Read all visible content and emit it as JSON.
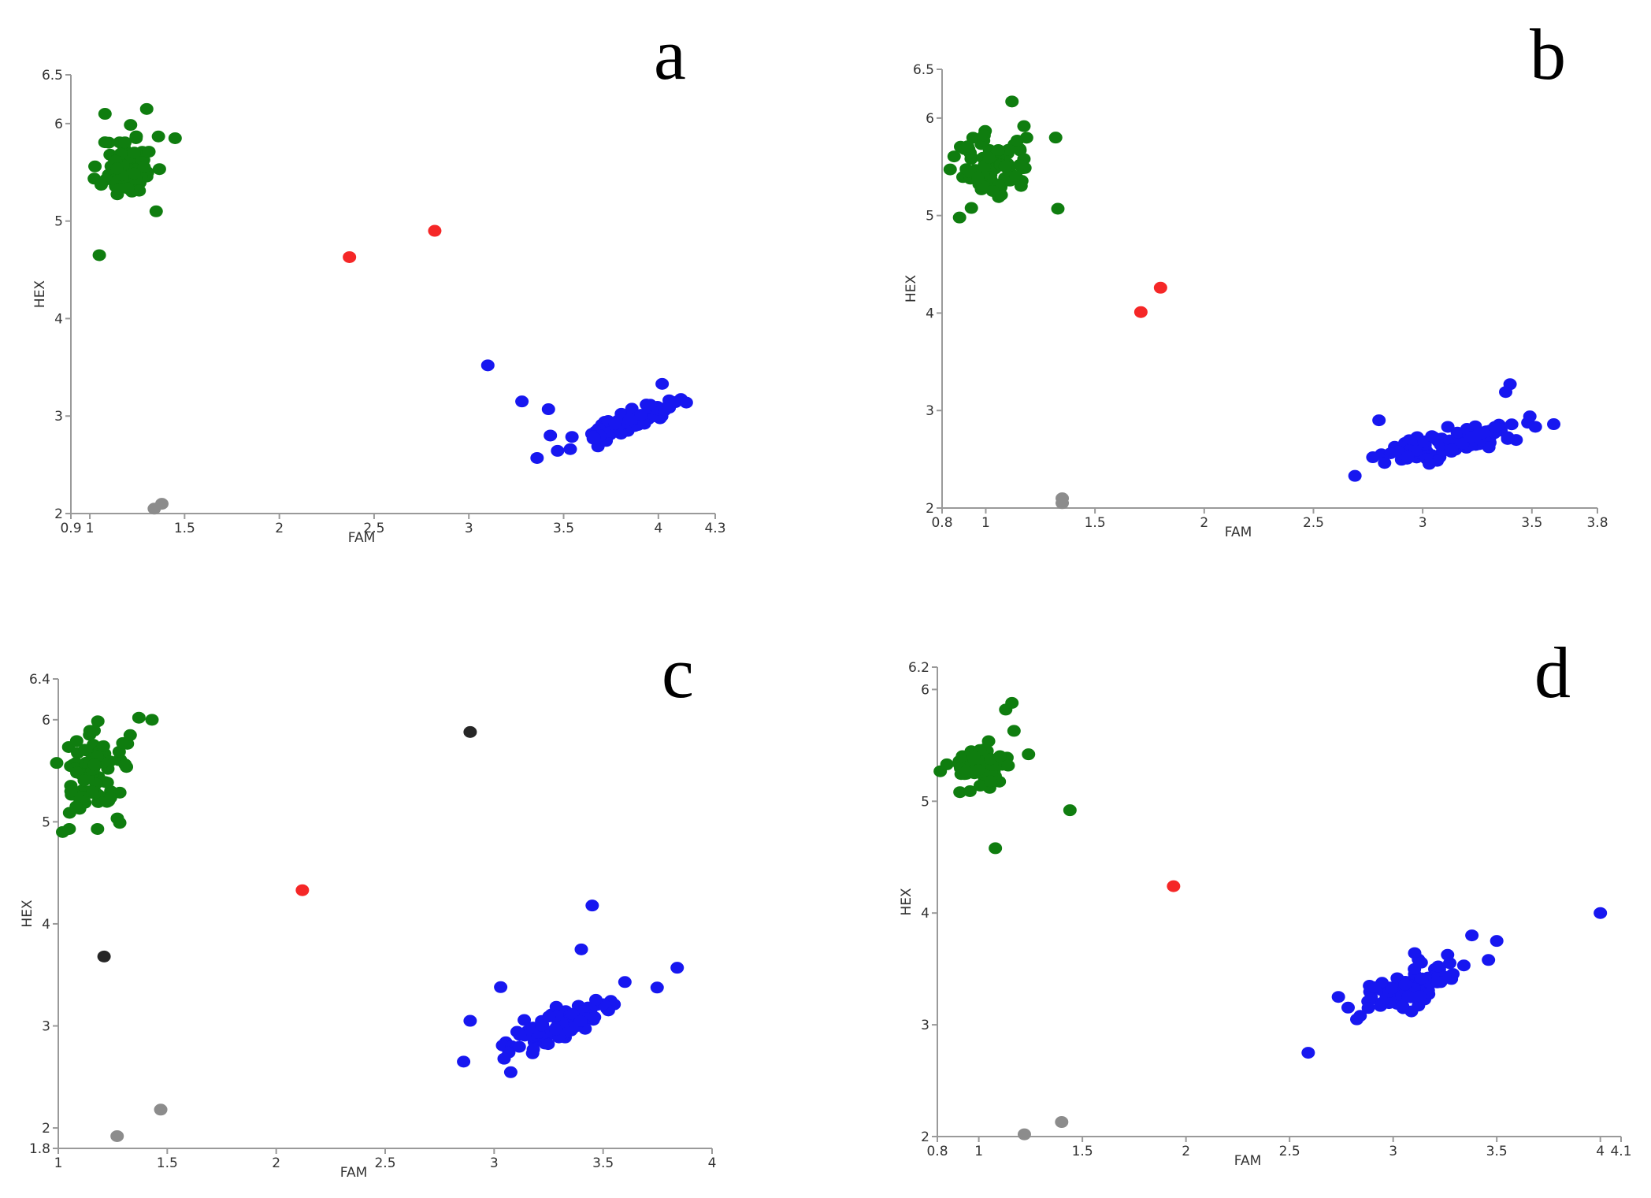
{
  "colors": {
    "green": "#0f7d0f",
    "blue": "#1717f0",
    "red": "#f52727",
    "gray": "#8c8c8c",
    "black": "#262626"
  },
  "chart_data": [
    {
      "panel": "a",
      "type": "scatter",
      "xlabel": "FAM",
      "ylabel": "HEX",
      "xlim": [
        0.9,
        4.3
      ],
      "ylim": [
        2,
        6.5
      ],
      "x_ticks": [
        {
          "v": 0.9,
          "t": "0.9"
        },
        {
          "v": 1,
          "t": "1"
        },
        {
          "v": 1.5,
          "t": "1.5"
        },
        {
          "v": 2,
          "t": "2"
        },
        {
          "v": 2.5,
          "t": "2.5"
        },
        {
          "v": 3,
          "t": "3"
        },
        {
          "v": 3.5,
          "t": "3.5"
        },
        {
          "v": 4,
          "t": "4"
        },
        {
          "v": 4.3,
          "t": "4.3"
        }
      ],
      "y_ticks": [
        {
          "v": 2,
          "t": "2"
        },
        {
          "v": 3,
          "t": "3"
        },
        {
          "v": 4,
          "t": "4"
        },
        {
          "v": 5,
          "t": "5"
        },
        {
          "v": 6,
          "t": "6"
        },
        {
          "v": 6.5,
          "t": "6.5"
        }
      ],
      "clusters": [
        {
          "name": "green",
          "color": "#0f7d0f",
          "n": 80,
          "center": [
            1.2,
            5.55
          ],
          "spread": [
            0.07,
            0.16
          ],
          "slope": 0,
          "seed": 11,
          "outliers": [
            [
              1.05,
              4.65
            ],
            [
              1.08,
              6.1
            ],
            [
              1.3,
              6.15
            ],
            [
              1.45,
              5.85
            ],
            [
              1.35,
              5.1
            ]
          ]
        },
        {
          "name": "blue",
          "color": "#1717f0",
          "n": 80,
          "center": [
            3.82,
            2.92
          ],
          "spread": [
            0.13,
            0.05
          ],
          "slope": 0.75,
          "seed": 23,
          "outliers": [
            [
              3.1,
              3.52
            ],
            [
              3.28,
              3.15
            ],
            [
              3.42,
              3.07
            ],
            [
              3.43,
              2.8
            ],
            [
              3.36,
              2.57
            ],
            [
              4.02,
              3.33
            ]
          ]
        },
        {
          "name": "red",
          "color": "#f52727",
          "n": 0,
          "outliers": [
            [
              2.37,
              4.63
            ],
            [
              2.82,
              4.9
            ]
          ]
        },
        {
          "name": "gray",
          "color": "#8c8c8c",
          "n": 0,
          "outliers": [
            [
              1.34,
              2.05
            ],
            [
              1.38,
              2.1
            ]
          ]
        }
      ]
    },
    {
      "panel": "b",
      "type": "scatter",
      "xlabel": "FAM",
      "ylabel": "HEX",
      "xlim": [
        0.8,
        3.8
      ],
      "ylim": [
        2,
        6.5
      ],
      "x_ticks": [
        {
          "v": 0.8,
          "t": "0.8"
        },
        {
          "v": 1,
          "t": "1"
        },
        {
          "v": 1.5,
          "t": "1.5"
        },
        {
          "v": 2,
          "t": "2"
        },
        {
          "v": 2.5,
          "t": "2.5"
        },
        {
          "v": 3,
          "t": "3"
        },
        {
          "v": 3.5,
          "t": "3.5"
        },
        {
          "v": 3.8,
          "t": "3.8"
        }
      ],
      "y_ticks": [
        {
          "v": 2,
          "t": "2"
        },
        {
          "v": 3,
          "t": "3"
        },
        {
          "v": 4,
          "t": "4"
        },
        {
          "v": 5,
          "t": "5"
        },
        {
          "v": 6,
          "t": "6"
        },
        {
          "v": 6.5,
          "t": "6.5"
        }
      ],
      "clusters": [
        {
          "name": "green",
          "color": "#0f7d0f",
          "n": 80,
          "center": [
            1.03,
            5.5
          ],
          "spread": [
            0.09,
            0.17
          ],
          "slope": 0,
          "seed": 31,
          "outliers": [
            [
              0.88,
              4.98
            ],
            [
              1.12,
              6.17
            ],
            [
              1.33,
              5.07
            ],
            [
              1.32,
              5.8
            ]
          ]
        },
        {
          "name": "blue",
          "color": "#1717f0",
          "n": 90,
          "center": [
            3.15,
            2.68
          ],
          "spread": [
            0.16,
            0.07
          ],
          "slope": 0.5,
          "seed": 37,
          "outliers": [
            [
              2.69,
              2.33
            ],
            [
              2.8,
              2.9
            ],
            [
              3.4,
              3.27
            ],
            [
              3.38,
              3.19
            ],
            [
              3.6,
              2.86
            ]
          ]
        },
        {
          "name": "red",
          "color": "#f52727",
          "n": 0,
          "outliers": [
            [
              1.71,
              4.01
            ],
            [
              1.8,
              4.26
            ]
          ]
        },
        {
          "name": "gray",
          "color": "#8c8c8c",
          "n": 0,
          "outliers": [
            [
              1.35,
              2.05
            ],
            [
              1.35,
              2.1
            ]
          ]
        }
      ]
    },
    {
      "panel": "c",
      "type": "scatter",
      "xlabel": "FAM",
      "ylabel": "HEX",
      "xlim": [
        1,
        4
      ],
      "ylim": [
        1.8,
        6.4
      ],
      "x_ticks": [
        {
          "v": 1,
          "t": "1"
        },
        {
          "v": 1.5,
          "t": "1.5"
        },
        {
          "v": 2,
          "t": "2"
        },
        {
          "v": 2.5,
          "t": "2.5"
        },
        {
          "v": 3,
          "t": "3"
        },
        {
          "v": 3.5,
          "t": "3.5"
        },
        {
          "v": 4,
          "t": "4"
        }
      ],
      "y_ticks": [
        {
          "v": 1.8,
          "t": "1.8"
        },
        {
          "v": 2,
          "t": "2"
        },
        {
          "v": 3,
          "t": "3"
        },
        {
          "v": 4,
          "t": "4"
        },
        {
          "v": 5,
          "t": "5"
        },
        {
          "v": 6,
          "t": "6"
        },
        {
          "v": 6.4,
          "t": "6.4"
        }
      ],
      "clusters": [
        {
          "name": "green",
          "color": "#0f7d0f",
          "n": 80,
          "center": [
            1.18,
            5.5
          ],
          "spread": [
            0.08,
            0.2
          ],
          "slope": 0,
          "seed": 41,
          "outliers": [
            [
              1.02,
              4.9
            ],
            [
              1.05,
              4.93
            ],
            [
              1.18,
              4.93
            ],
            [
              1.37,
              6.02
            ],
            [
              1.43,
              6.0
            ],
            [
              1.33,
              5.85
            ]
          ]
        },
        {
          "name": "blue",
          "color": "#1717f0",
          "n": 90,
          "center": [
            3.3,
            3.0
          ],
          "spread": [
            0.14,
            0.08
          ],
          "slope": 0.9,
          "seed": 47,
          "outliers": [
            [
              3.45,
              4.18
            ],
            [
              3.4,
              3.75
            ],
            [
              3.84,
              3.57
            ],
            [
              3.03,
              3.38
            ],
            [
              2.89,
              3.05
            ],
            [
              2.86,
              2.65
            ],
            [
              3.6,
              3.43
            ]
          ]
        },
        {
          "name": "red",
          "color": "#f52727",
          "n": 0,
          "outliers": [
            [
              2.12,
              4.33
            ]
          ]
        },
        {
          "name": "gray",
          "color": "#8c8c8c",
          "n": 0,
          "outliers": [
            [
              1.27,
              1.92
            ],
            [
              1.47,
              2.18
            ]
          ]
        },
        {
          "name": "black",
          "color": "#262626",
          "n": 0,
          "outliers": [
            [
              2.89,
              5.88
            ],
            [
              1.21,
              3.68
            ]
          ]
        }
      ]
    },
    {
      "panel": "d",
      "type": "scatter",
      "xlabel": "FAM",
      "ylabel": "HEX",
      "xlim": [
        0.8,
        4.1
      ],
      "ylim": [
        2,
        6.2
      ],
      "x_ticks": [
        {
          "v": 0.8,
          "t": "0.8"
        },
        {
          "v": 1,
          "t": "1"
        },
        {
          "v": 1.5,
          "t": "1.5"
        },
        {
          "v": 2,
          "t": "2"
        },
        {
          "v": 2.5,
          "t": "2.5"
        },
        {
          "v": 3,
          "t": "3"
        },
        {
          "v": 3.5,
          "t": "3.5"
        },
        {
          "v": 4,
          "t": "4"
        },
        {
          "v": 4.1,
          "t": "4.1"
        }
      ],
      "y_ticks": [
        {
          "v": 2,
          "t": "2"
        },
        {
          "v": 3,
          "t": "3"
        },
        {
          "v": 4,
          "t": "4"
        },
        {
          "v": 5,
          "t": "5"
        },
        {
          "v": 6,
          "t": "6"
        },
        {
          "v": 6.2,
          "t": "6.2"
        }
      ],
      "clusters": [
        {
          "name": "green",
          "color": "#0f7d0f",
          "n": 70,
          "center": [
            1.0,
            5.32
          ],
          "spread": [
            0.07,
            0.1
          ],
          "slope": 0,
          "seed": 53,
          "outliers": [
            [
              1.13,
              5.82
            ],
            [
              1.16,
              5.88
            ],
            [
              1.17,
              5.63
            ],
            [
              1.24,
              5.42
            ],
            [
              1.44,
              4.92
            ],
            [
              1.08,
              4.58
            ]
          ]
        },
        {
          "name": "blue",
          "color": "#1717f0",
          "n": 90,
          "center": [
            3.08,
            3.32
          ],
          "spread": [
            0.12,
            0.08
          ],
          "slope": 0.7,
          "seed": 59,
          "outliers": [
            [
              2.59,
              2.75
            ],
            [
              3.38,
              3.8
            ],
            [
              3.5,
              3.75
            ],
            [
              3.46,
              3.58
            ],
            [
              4.0,
              4.0
            ],
            [
              2.88,
              3.15
            ]
          ]
        },
        {
          "name": "red",
          "color": "#f52727",
          "n": 0,
          "outliers": [
            [
              1.94,
              4.24
            ]
          ]
        },
        {
          "name": "gray",
          "color": "#8c8c8c",
          "n": 0,
          "outliers": [
            [
              1.22,
              2.02
            ],
            [
              1.4,
              2.13
            ]
          ]
        }
      ]
    }
  ]
}
